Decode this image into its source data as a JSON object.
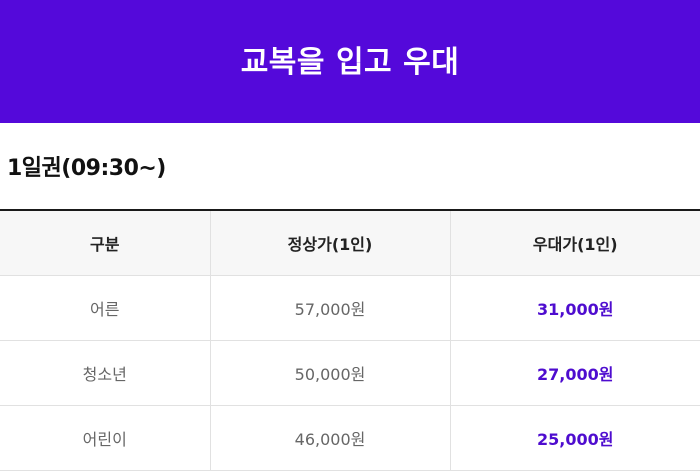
{
  "colors": {
    "brand": "#5409DA",
    "discount_text": "#4E0CCF"
  },
  "banner": {
    "title": "교복을 입고 우대"
  },
  "ticket": {
    "title": "1일권(09:30~)"
  },
  "table": {
    "headers": [
      "구분",
      "정상가(1인)",
      "우대가(1인)"
    ],
    "rows": [
      {
        "category": "어른",
        "regular": "57,000원",
        "discount": "31,000원"
      },
      {
        "category": "청소년",
        "regular": "50,000원",
        "discount": "27,000원"
      },
      {
        "category": "어린이",
        "regular": "46,000원",
        "discount": "25,000원"
      }
    ]
  }
}
